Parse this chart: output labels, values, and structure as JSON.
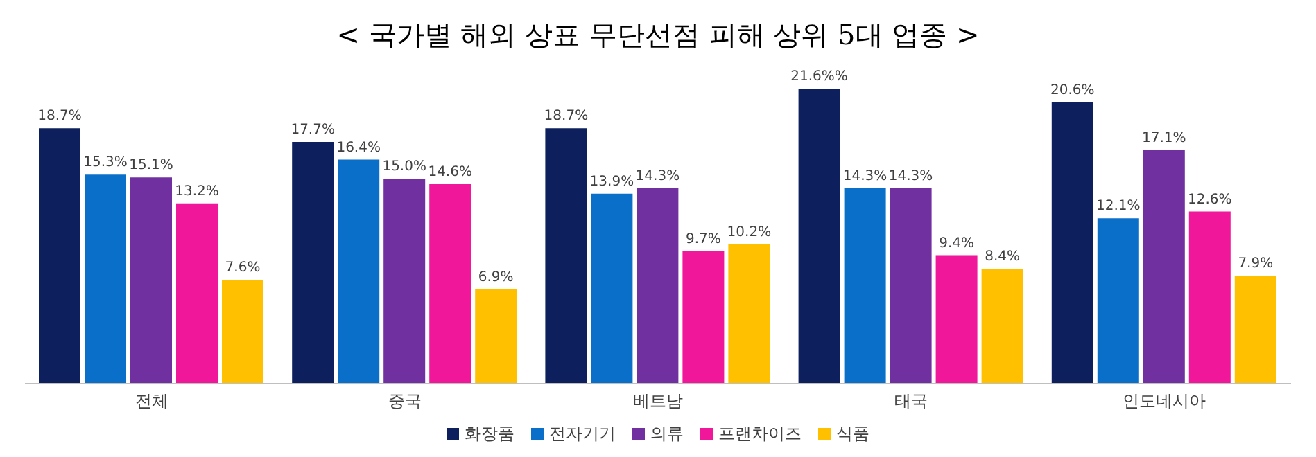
{
  "chart_data": {
    "type": "bar",
    "title": "< 국가별 해외 상표 무단선점 피해 상위 5대 업종 >",
    "categories": [
      "전체",
      "중국",
      "베트남",
      "태국",
      "인도네시아"
    ],
    "legend": "bottom",
    "grid": false,
    "series": [
      {
        "name": "화장품",
        "color": "#0d1f5c",
        "values": [
          18.7,
          17.7,
          18.7,
          21.6,
          20.6
        ],
        "value_labels": [
          "18.7%",
          "17.7%",
          "18.7%",
          "21.6%%",
          "20.6%"
        ]
      },
      {
        "name": "전자기기",
        "color": "#0a6fc9",
        "values": [
          15.3,
          16.4,
          13.9,
          14.3,
          12.1
        ],
        "value_labels": [
          "15.3%",
          "16.4%",
          "13.9%",
          "14.3%",
          "12.1%"
        ]
      },
      {
        "name": "의류",
        "color": "#7030a0",
        "values": [
          15.1,
          15.0,
          14.3,
          14.3,
          17.1
        ],
        "value_labels": [
          "15.1%",
          "15.0%",
          "14.3%",
          "14.3%",
          "17.1%"
        ]
      },
      {
        "name": "프랜차이즈",
        "color": "#f0179a",
        "values": [
          13.2,
          14.6,
          9.7,
          9.4,
          12.6
        ],
        "value_labels": [
          "13.2%",
          "14.6%",
          "9.7%",
          "9.4%",
          "12.6%"
        ]
      },
      {
        "name": "식품",
        "color": "#ffc000",
        "values": [
          7.6,
          6.9,
          10.2,
          8.4,
          7.9
        ],
        "value_labels": [
          "7.6%",
          "6.9%",
          "10.2%",
          "8.4%",
          "7.9%"
        ]
      }
    ]
  }
}
